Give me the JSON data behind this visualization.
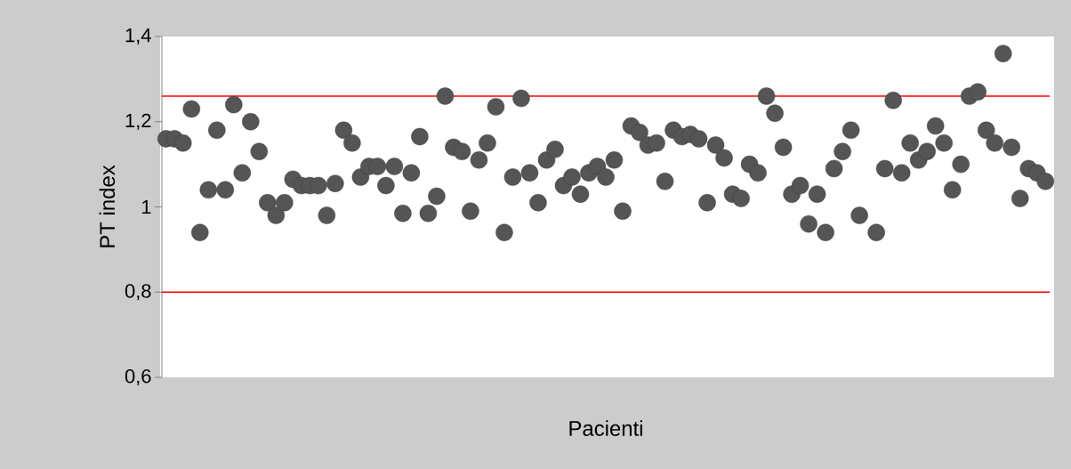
{
  "chart_data": {
    "type": "scatter",
    "xlabel": "Pacienti",
    "ylabel": "PT index",
    "categories": [
      null,
      null,
      null,
      null,
      null,
      null,
      null,
      null,
      null,
      null,
      null,
      null,
      null,
      null,
      null,
      null,
      null,
      null,
      null,
      null,
      null,
      null,
      null,
      null,
      null,
      null,
      null,
      null,
      null,
      null,
      null,
      null,
      null,
      null,
      null,
      null,
      null,
      null,
      null,
      null,
      null,
      null,
      null,
      null,
      null,
      null,
      null,
      null,
      null,
      null,
      null,
      null,
      null,
      null,
      null,
      null,
      null,
      null,
      null,
      null,
      null,
      null,
      null,
      null,
      null,
      null,
      null,
      null,
      null,
      null,
      null,
      null,
      null,
      null,
      null,
      null,
      null,
      null,
      null,
      null,
      null,
      null,
      null,
      null,
      null,
      null,
      null,
      null,
      null,
      null,
      null,
      null,
      null,
      null,
      null,
      null,
      null,
      null,
      null,
      null,
      null,
      null,
      null,
      null,
      null
    ],
    "series": [
      {
        "color": "#555555",
        "values": [
          1.16,
          1.16,
          1.15,
          1.23,
          0.94,
          1.04,
          1.18,
          1.04,
          1.24,
          1.08,
          1.2,
          1.13,
          1.01,
          0.98,
          1.01,
          1.065,
          1.05,
          1.05,
          1.05,
          0.98,
          1.055,
          1.18,
          1.15,
          1.07,
          1.095,
          1.095,
          1.05,
          1.095,
          0.985,
          1.08,
          1.165,
          0.985,
          1.025,
          1.26,
          1.14,
          1.13,
          0.99,
          1.11,
          1.15,
          1.235,
          0.94,
          1.07,
          1.255,
          1.08,
          1.01,
          1.11,
          1.135,
          1.05,
          1.07,
          1.03,
          1.08,
          1.095,
          1.07,
          1.11,
          0.99,
          1.19,
          1.175,
          1.145,
          1.15,
          1.06,
          1.18,
          1.165,
          1.17,
          1.16,
          1.01,
          1.145,
          1.115,
          1.03,
          1.02,
          1.1,
          1.08,
          1.26,
          1.22,
          1.14,
          1.03,
          1.05,
          0.96,
          1.03,
          0.94,
          1.09,
          1.13,
          1.18,
          0.98,
          null,
          0.94,
          1.09,
          1.25,
          1.08,
          1.15,
          1.11,
          1.13,
          1.19,
          1.15,
          1.04,
          1.1,
          1.26,
          1.27,
          1.18,
          1.15,
          1.36,
          1.14,
          1.02,
          1.09,
          1.08,
          1.06
        ]
      }
    ],
    "ylim": [
      0.6,
      1.4
    ],
    "yticks": [
      {
        "value": 0.6,
        "label": "0,6"
      },
      {
        "value": 0.8,
        "label": "0,8"
      },
      {
        "value": 1.0,
        "label": "1"
      },
      {
        "value": 1.2,
        "label": "1,2"
      },
      {
        "value": 1.4,
        "label": "1,4"
      }
    ],
    "ref_lines": [
      {
        "axis": "y",
        "value": 1.26,
        "color": "#ff0000"
      },
      {
        "axis": "y",
        "value": 0.8,
        "color": "#ff0000"
      }
    ],
    "marker": "circle",
    "grid": false,
    "legend": false
  }
}
